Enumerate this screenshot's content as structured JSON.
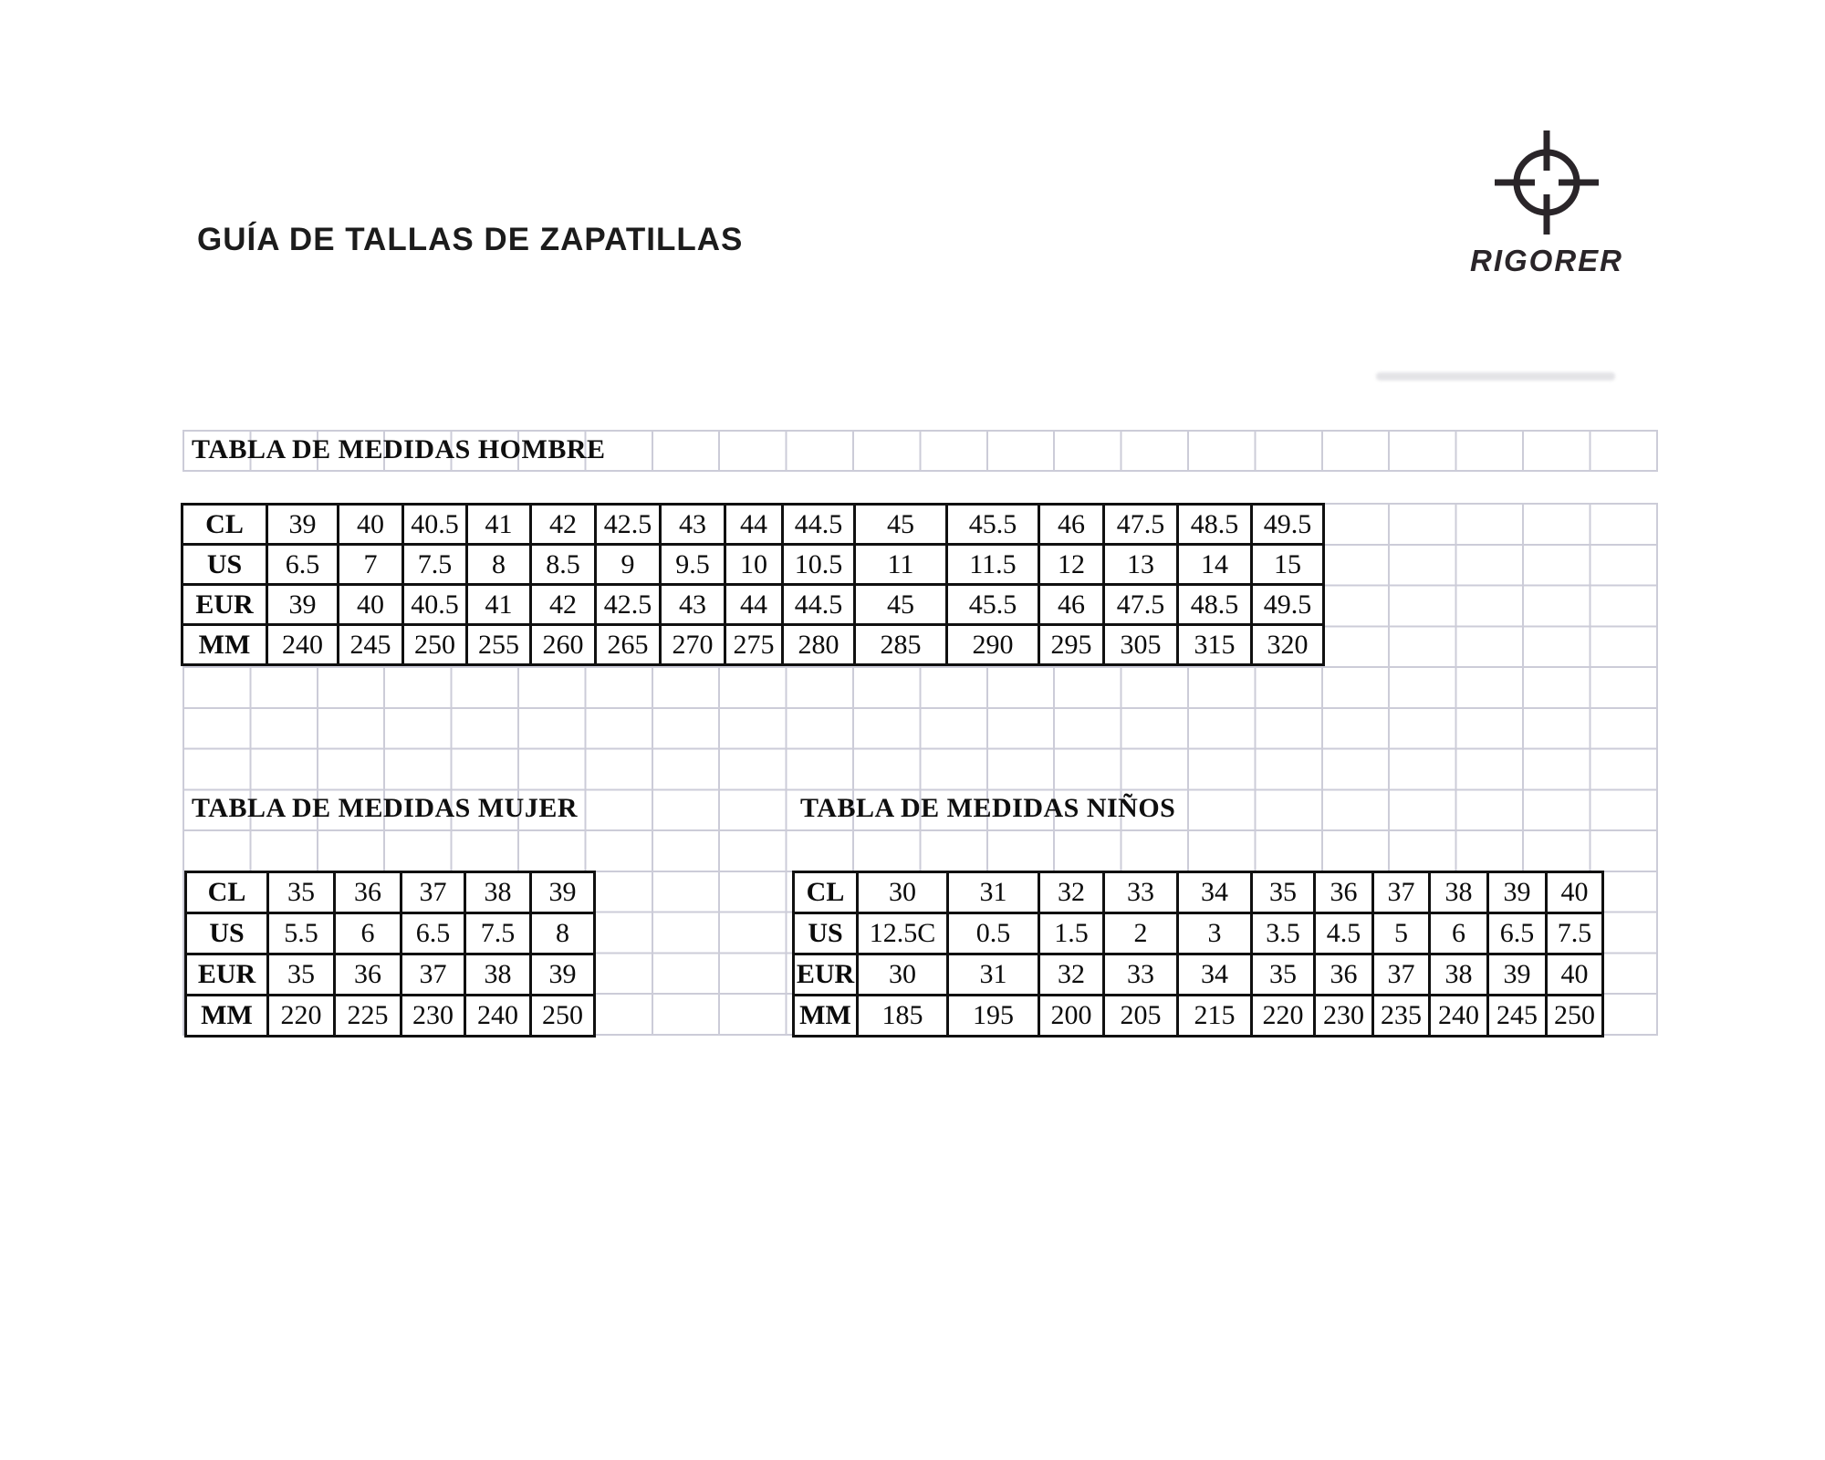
{
  "page": {
    "title": "GUÍA DE TALLAS DE ZAPATILLAS"
  },
  "logo": {
    "brand": "RIGORER",
    "icon": "crosshair-target"
  },
  "colors": {
    "text": "#111111",
    "table_border": "#101010",
    "grid_line": "#ccccd8"
  },
  "tables": [
    {
      "id": "hombre",
      "title": "TABLA DE MEDIDAS HOMBRE",
      "rows": [
        {
          "label": "CL",
          "values": [
            "39",
            "40",
            "40.5",
            "41",
            "42",
            "42.5",
            "43",
            "44",
            "44.5",
            "45",
            "45.5",
            "46",
            "47.5",
            "48.5",
            "49.5"
          ]
        },
        {
          "label": "US",
          "values": [
            "6.5",
            "7",
            "7.5",
            "8",
            "8.5",
            "9",
            "9.5",
            "10",
            "10.5",
            "11",
            "11.5",
            "12",
            "13",
            "14",
            "15"
          ]
        },
        {
          "label": "EUR",
          "values": [
            "39",
            "40",
            "40.5",
            "41",
            "42",
            "42.5",
            "43",
            "44",
            "44.5",
            "45",
            "45.5",
            "46",
            "47.5",
            "48.5",
            "49.5"
          ]
        },
        {
          "label": "MM",
          "values": [
            "240",
            "245",
            "250",
            "255",
            "260",
            "265",
            "270",
            "275",
            "280",
            "285",
            "290",
            "295",
            "305",
            "315",
            "320"
          ]
        }
      ]
    },
    {
      "id": "mujer",
      "title": "TABLA DE MEDIDAS MUJER",
      "rows": [
        {
          "label": "CL",
          "values": [
            "35",
            "36",
            "37",
            "38",
            "39"
          ]
        },
        {
          "label": "US",
          "values": [
            "5.5",
            "6",
            "6.5",
            "7.5",
            "8"
          ]
        },
        {
          "label": "EUR",
          "values": [
            "35",
            "36",
            "37",
            "38",
            "39"
          ]
        },
        {
          "label": "MM",
          "values": [
            "220",
            "225",
            "230",
            "240",
            "250"
          ]
        }
      ]
    },
    {
      "id": "ninos",
      "title": "TABLA DE MEDIDAS NIÑOS",
      "rows": [
        {
          "label": "CL",
          "values": [
            "30",
            "31",
            "32",
            "33",
            "34",
            "35",
            "36",
            "37",
            "38",
            "39",
            "40"
          ]
        },
        {
          "label": "US",
          "values": [
            "12.5C",
            "0.5",
            "1.5",
            "2",
            "3",
            "3.5",
            "4.5",
            "5",
            "6",
            "6.5",
            "7.5"
          ]
        },
        {
          "label": "EUR",
          "values": [
            "30",
            "31",
            "32",
            "33",
            "34",
            "35",
            "36",
            "37",
            "38",
            "39",
            "40"
          ]
        },
        {
          "label": "MM",
          "values": [
            "185",
            "195",
            "200",
            "205",
            "215",
            "220",
            "230",
            "235",
            "240",
            "245",
            "250"
          ]
        }
      ]
    }
  ]
}
